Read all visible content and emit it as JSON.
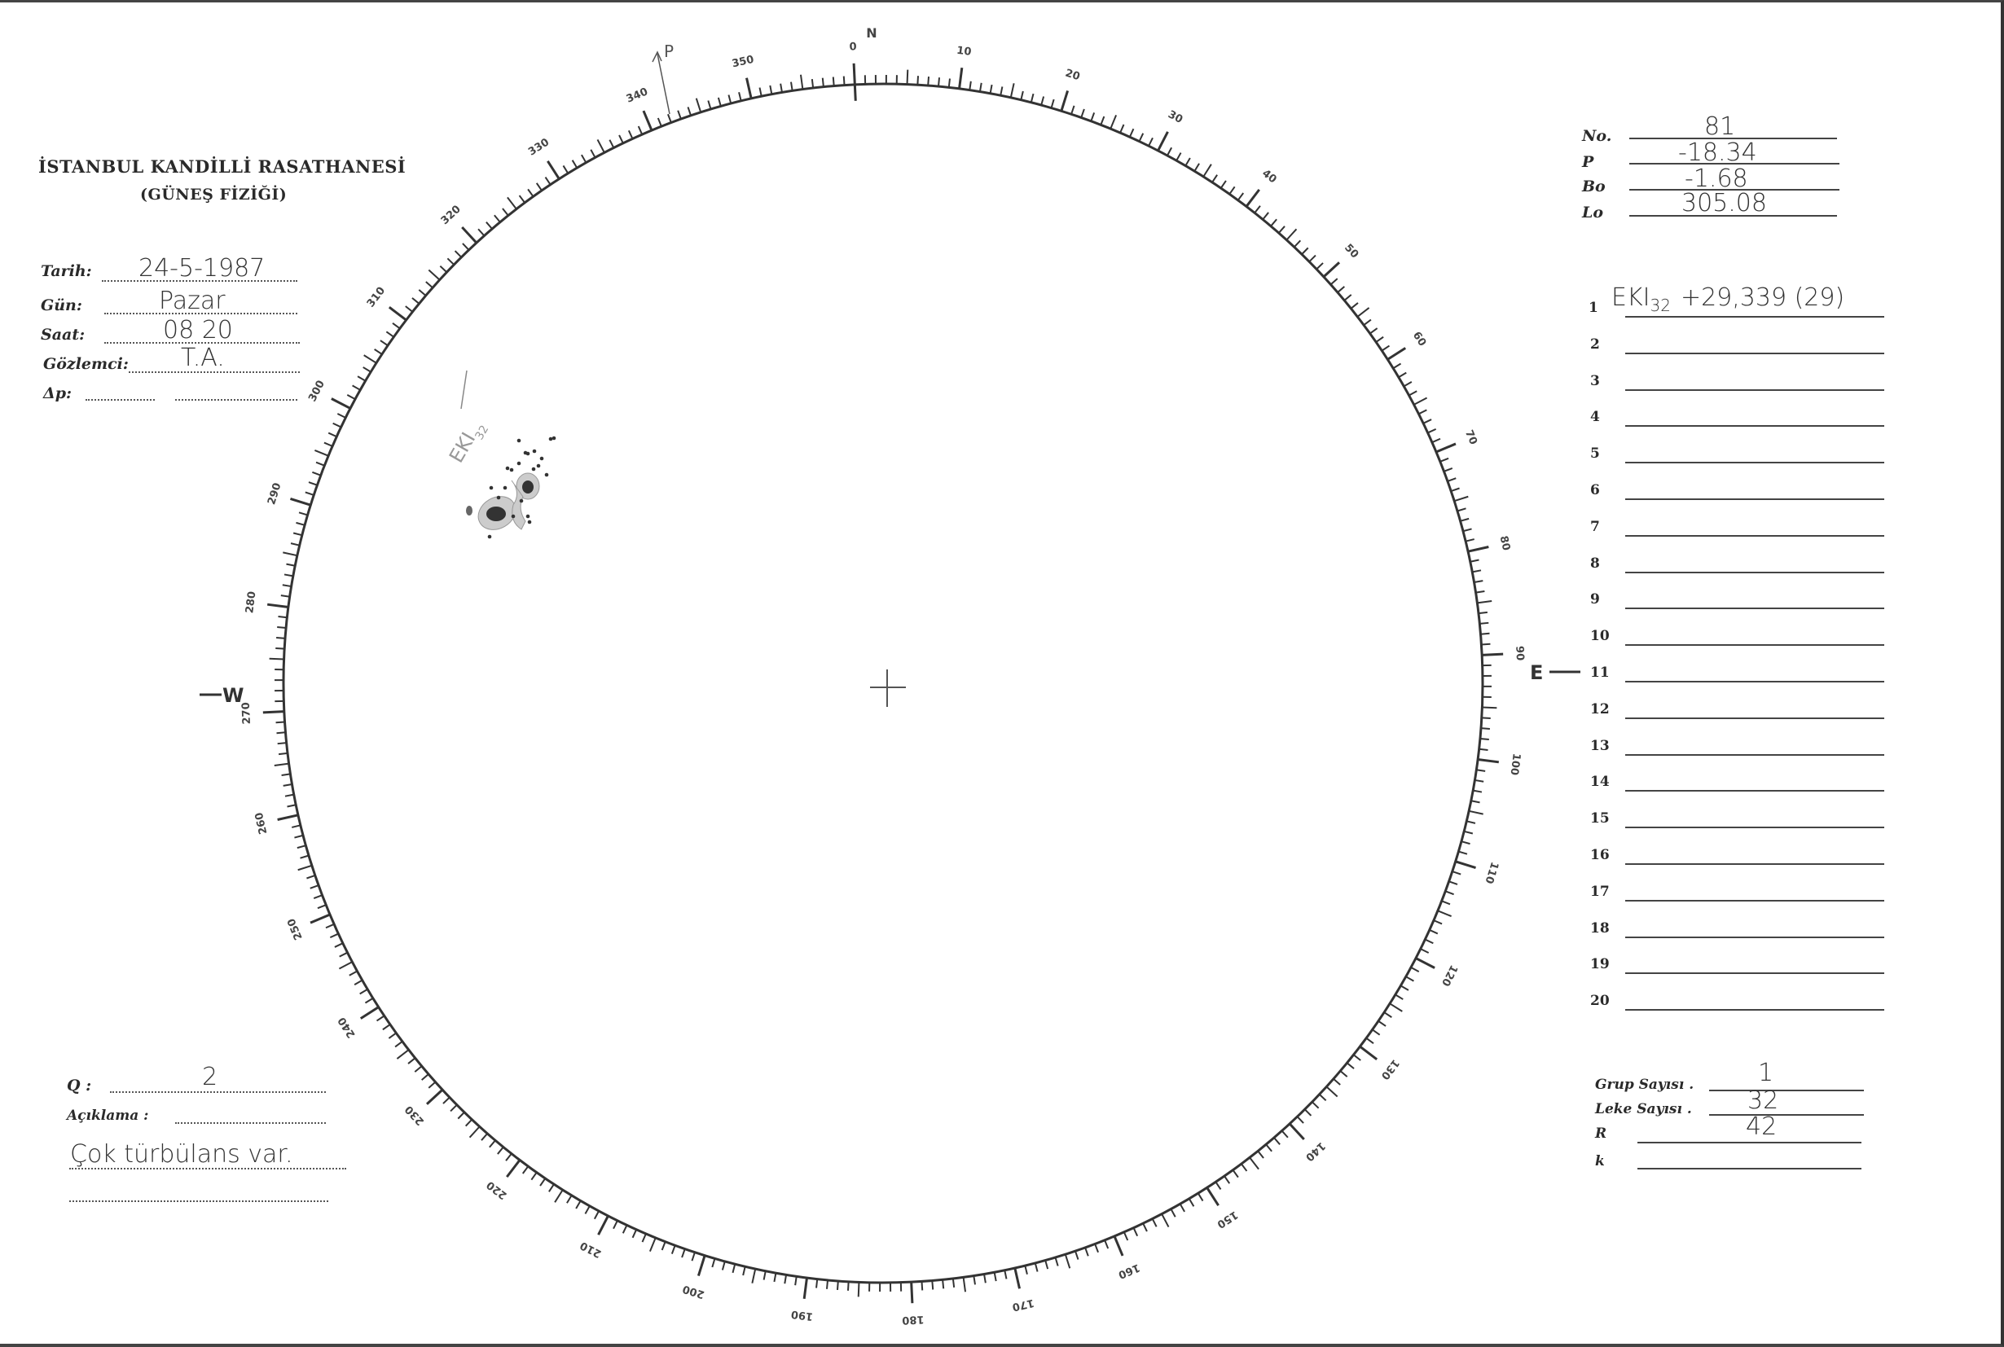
{
  "header": {
    "title": "İSTANBUL KANDİLLİ RASATHANESİ",
    "subtitle": "(GÜNEŞ FİZİĞİ)"
  },
  "observation": {
    "tarih_label": "Tarih:",
    "tarih": "24-5-1987",
    "gun_label": "Gün:",
    "gun": "Pazar",
    "saat_label": "Saat:",
    "saat": "08 20",
    "gozlemci_label": "Gözlemci:",
    "gozlemci": "T.A.",
    "dp_label": "Δp:",
    "dp": ""
  },
  "ephemeris": {
    "no_label": "No.",
    "no": "81",
    "p_label": "P",
    "p": "-18.34",
    "bo_label": "Bo",
    "bo": "-1.68",
    "lo_label": "Lo",
    "lo": "305.08"
  },
  "groups": [
    {
      "n": "1",
      "text": "EKI",
      "sub": "32",
      "rest": "+29,339 (29)"
    },
    {
      "n": "2"
    },
    {
      "n": "3"
    },
    {
      "n": "4"
    },
    {
      "n": "5"
    },
    {
      "n": "6"
    },
    {
      "n": "7"
    },
    {
      "n": "8"
    },
    {
      "n": "9"
    },
    {
      "n": "10"
    },
    {
      "n": "11"
    },
    {
      "n": "12"
    },
    {
      "n": "13"
    },
    {
      "n": "14"
    },
    {
      "n": "15"
    },
    {
      "n": "16"
    },
    {
      "n": "17"
    },
    {
      "n": "18"
    },
    {
      "n": "19"
    },
    {
      "n": "20"
    }
  ],
  "summary": {
    "grup_label": "Grup Sayısı .",
    "grup": "1",
    "leke_label": "Leke Sayısı .",
    "leke": "32",
    "r_label": "R",
    "r": "42",
    "k_label": "k",
    "k": ""
  },
  "notes": {
    "q_label": "Q :",
    "q": "2",
    "aciklama_label": "Açıklama :",
    "aciklama": "Çok türbülans var."
  },
  "disk": {
    "north_label": "N",
    "east_label": "E",
    "west_label": "W",
    "p_axis_label": "P",
    "group_label": "EKI",
    "group_sub": "32",
    "scale_labels": [
      "0",
      "10",
      "20",
      "30",
      "40",
      "50",
      "60",
      "70",
      "80",
      "90",
      "100",
      "110",
      "120",
      "130",
      "140",
      "150",
      "160",
      "170",
      "180",
      "190",
      "200",
      "210",
      "220",
      "230",
      "240",
      "250",
      "260",
      "270",
      "280",
      "290",
      "300",
      "310",
      "320",
      "330",
      "340",
      "350"
    ]
  }
}
